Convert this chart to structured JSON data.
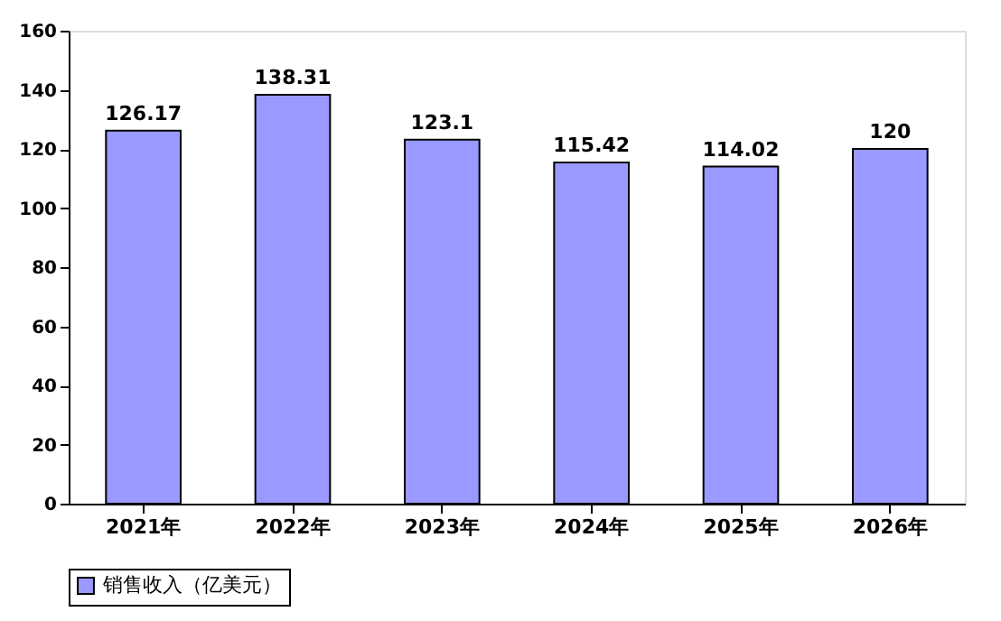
{
  "chart_data": {
    "type": "bar",
    "categories": [
      "2021年",
      "2022年",
      "2023年",
      "2024年",
      "2025年",
      "2026年"
    ],
    "series": [
      {
        "name": "销售收入（亿美元）",
        "color": "#9999ff",
        "values": [
          126.17,
          138.31,
          123.1,
          115.42,
          114.02,
          120
        ]
      }
    ],
    "ylim": [
      0,
      160
    ],
    "yticks": [
      0,
      20,
      40,
      60,
      80,
      100,
      120,
      140,
      160
    ],
    "data_labels": true,
    "grid": false,
    "legend": "bottom"
  }
}
